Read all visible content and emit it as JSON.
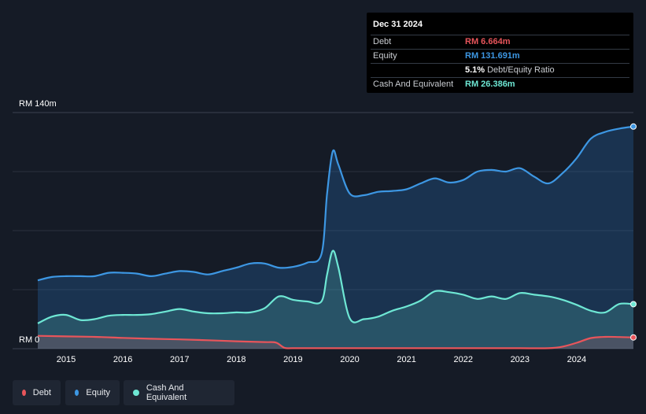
{
  "tooltip": {
    "date": "Dec 31 2024",
    "rows": [
      {
        "label": "Debt",
        "value": "RM 6.664m",
        "color": "#e8555b"
      },
      {
        "label": "Equity",
        "value": "RM 131.691m",
        "color": "#3d97e3"
      },
      {
        "label": "",
        "value": "5.1%",
        "extra": "Debt/Equity Ratio",
        "color": "#ffffff"
      },
      {
        "label": "Cash And Equivalent",
        "value": "RM 26.386m",
        "color": "#6ee7d4"
      }
    ]
  },
  "legend": [
    {
      "label": "Debt",
      "color": "#e8555b"
    },
    {
      "label": "Equity",
      "color": "#3d97e3"
    },
    {
      "label": "Cash And Equivalent",
      "color": "#6ee7d4"
    }
  ],
  "chart_data": {
    "type": "area",
    "ylim": [
      0,
      140
    ],
    "y_tick_labels": [
      "RM 140m",
      "RM 0"
    ],
    "x_ticks": [
      "2015",
      "2016",
      "2017",
      "2018",
      "2019",
      "2020",
      "2021",
      "2022",
      "2023",
      "2024"
    ],
    "xlim": [
      2014.5,
      2025.0
    ],
    "grid": true,
    "series": [
      {
        "name": "Equity",
        "color": "#3d97e3",
        "x": [
          2014.5,
          2014.75,
          2015.0,
          2015.25,
          2015.5,
          2015.75,
          2016.0,
          2016.25,
          2016.5,
          2016.75,
          2017.0,
          2017.25,
          2017.5,
          2017.75,
          2018.0,
          2018.25,
          2018.5,
          2018.75,
          2019.0,
          2019.25,
          2019.5,
          2019.6,
          2019.7,
          2019.8,
          2020.0,
          2020.25,
          2020.5,
          2020.75,
          2021.0,
          2021.25,
          2021.5,
          2021.75,
          2022.0,
          2022.25,
          2022.5,
          2022.75,
          2023.0,
          2023.25,
          2023.5,
          2023.75,
          2024.0,
          2024.25,
          2024.5,
          2024.75,
          2025.0
        ],
        "values": [
          40.5,
          42.5,
          43.0,
          43.0,
          43.0,
          45.0,
          45.0,
          44.5,
          43.0,
          44.5,
          46.0,
          45.5,
          44.0,
          46.0,
          48.0,
          50.5,
          50.5,
          48.0,
          48.5,
          51.0,
          56.0,
          92.0,
          117.0,
          109.0,
          92.0,
          91.0,
          93.0,
          93.5,
          94.5,
          98.0,
          101.0,
          98.5,
          100.0,
          105.0,
          106.0,
          105.0,
          107.0,
          102.0,
          98.0,
          104.0,
          113.0,
          124.5,
          128.5,
          130.5,
          131.691
        ]
      },
      {
        "name": "Cash And Equivalent",
        "color": "#6ee7d4",
        "x": [
          2014.5,
          2014.75,
          2015.0,
          2015.25,
          2015.5,
          2015.75,
          2016.0,
          2016.25,
          2016.5,
          2016.75,
          2017.0,
          2017.25,
          2017.5,
          2017.75,
          2018.0,
          2018.25,
          2018.5,
          2018.75,
          2019.0,
          2019.25,
          2019.5,
          2019.6,
          2019.7,
          2019.8,
          2020.0,
          2020.25,
          2020.5,
          2020.75,
          2021.0,
          2021.25,
          2021.5,
          2021.75,
          2022.0,
          2022.25,
          2022.5,
          2022.75,
          2023.0,
          2023.25,
          2023.5,
          2023.75,
          2024.0,
          2024.25,
          2024.5,
          2024.75,
          2025.0
        ],
        "values": [
          15.0,
          19.0,
          20.0,
          17.0,
          17.5,
          19.5,
          20.0,
          20.0,
          20.5,
          22.0,
          23.5,
          22.0,
          21.0,
          21.0,
          21.5,
          21.5,
          24.0,
          31.0,
          29.0,
          28.0,
          28.0,
          44.0,
          58.0,
          48.0,
          18.0,
          17.5,
          19.0,
          22.5,
          25.0,
          28.5,
          34.0,
          33.5,
          32.0,
          29.5,
          31.0,
          29.5,
          33.0,
          32.0,
          31.0,
          29.0,
          26.0,
          22.5,
          21.5,
          26.5,
          26.386
        ]
      },
      {
        "name": "Debt",
        "color": "#e8555b",
        "x": [
          2014.5,
          2015.0,
          2015.5,
          2016.0,
          2016.5,
          2017.0,
          2017.5,
          2018.0,
          2018.5,
          2018.7,
          2018.85,
          2019.0,
          2019.5,
          2020.0,
          2020.5,
          2021.0,
          2021.5,
          2022.0,
          2022.5,
          2023.0,
          2023.5,
          2023.75,
          2024.0,
          2024.25,
          2024.5,
          2024.75,
          2025.0
        ],
        "values": [
          7.6,
          7.3,
          7.0,
          6.4,
          5.9,
          5.5,
          5.0,
          4.4,
          3.9,
          3.6,
          0.5,
          0.3,
          0.3,
          0.3,
          0.3,
          0.3,
          0.3,
          0.3,
          0.3,
          0.3,
          0.3,
          1.2,
          3.5,
          6.3,
          7.0,
          6.9,
          6.664
        ]
      }
    ]
  }
}
